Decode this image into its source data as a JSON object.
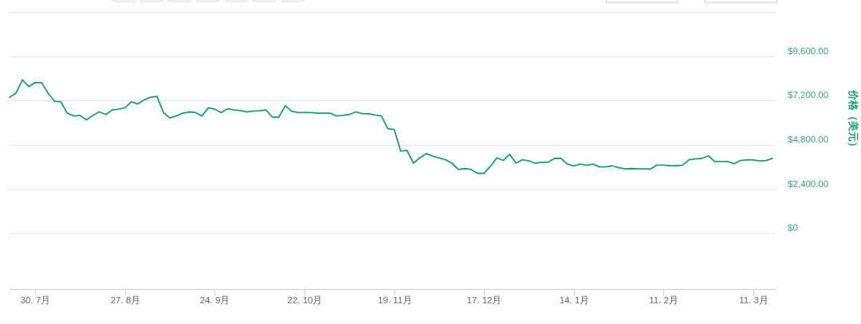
{
  "chart_data": {
    "type": "line",
    "ylabel": "价格（美元）",
    "color": "#1e9e72",
    "grid": "y",
    "ylim": [
      -3000,
      12000
    ],
    "yticks": [
      {
        "value": 0,
        "label": "$0"
      },
      {
        "value": 2400,
        "label": "$2,400.00"
      },
      {
        "value": 4800,
        "label": "$4,800.00"
      },
      {
        "value": 7200,
        "label": "$7,200.00"
      },
      {
        "value": 9600,
        "label": "$9,600.00"
      }
    ],
    "categories": [
      null,
      null,
      null,
      null,
      "30. 7月",
      null,
      null,
      null,
      null,
      null,
      null,
      null,
      null,
      null,
      null,
      null,
      null,
      null,
      "27. 8月",
      null,
      null,
      null,
      null,
      null,
      null,
      null,
      null,
      null,
      null,
      null,
      null,
      null,
      "24. 9月",
      null,
      null,
      null,
      null,
      null,
      null,
      null,
      null,
      null,
      null,
      null,
      null,
      null,
      "22. 10月",
      null,
      null,
      null,
      null,
      null,
      null,
      null,
      null,
      null,
      null,
      null,
      null,
      null,
      "19. 11月",
      null,
      null,
      null,
      null,
      null,
      null,
      null,
      null,
      null,
      null,
      null,
      null,
      null,
      "17. 12月",
      null,
      null,
      null,
      null,
      null,
      null,
      null,
      null,
      null,
      null,
      null,
      null,
      null,
      "14. 1月",
      null,
      null,
      null,
      null,
      null,
      null,
      null,
      null,
      null,
      null,
      null,
      null,
      null,
      "11. 2月",
      null,
      null,
      null,
      null,
      null,
      null,
      null,
      null,
      null,
      null,
      null,
      null,
      null,
      "11. 3月",
      null,
      null,
      null
    ],
    "values": [
      7380,
      7600,
      8320,
      7960,
      8180,
      8170,
      7600,
      7170,
      7130,
      6520,
      6370,
      6400,
      6160,
      6400,
      6590,
      6450,
      6690,
      6740,
      6810,
      7130,
      7020,
      7240,
      7380,
      7430,
      6550,
      6260,
      6370,
      6520,
      6590,
      6550,
      6370,
      6810,
      6740,
      6550,
      6760,
      6690,
      6660,
      6590,
      6630,
      6650,
      6690,
      6300,
      6300,
      6920,
      6630,
      6550,
      6550,
      6550,
      6520,
      6520,
      6520,
      6370,
      6400,
      6450,
      6590,
      6490,
      6490,
      6420,
      6370,
      5680,
      5640,
      4470,
      4500,
      3810,
      4100,
      4330,
      4190,
      4100,
      4000,
      3810,
      3470,
      3520,
      3470,
      3260,
      3260,
      3640,
      4100,
      3960,
      4290,
      3810,
      4000,
      3930,
      3810,
      3860,
      3860,
      4070,
      4070,
      3760,
      3670,
      3760,
      3700,
      3760,
      3610,
      3610,
      3670,
      3570,
      3500,
      3520,
      3500,
      3500,
      3500,
      3710,
      3710,
      3670,
      3670,
      3710,
      4000,
      4040,
      4070,
      4210,
      3900,
      3900,
      3900,
      3780,
      3960,
      3990,
      3990,
      3930,
      3960,
      4070
    ]
  }
}
